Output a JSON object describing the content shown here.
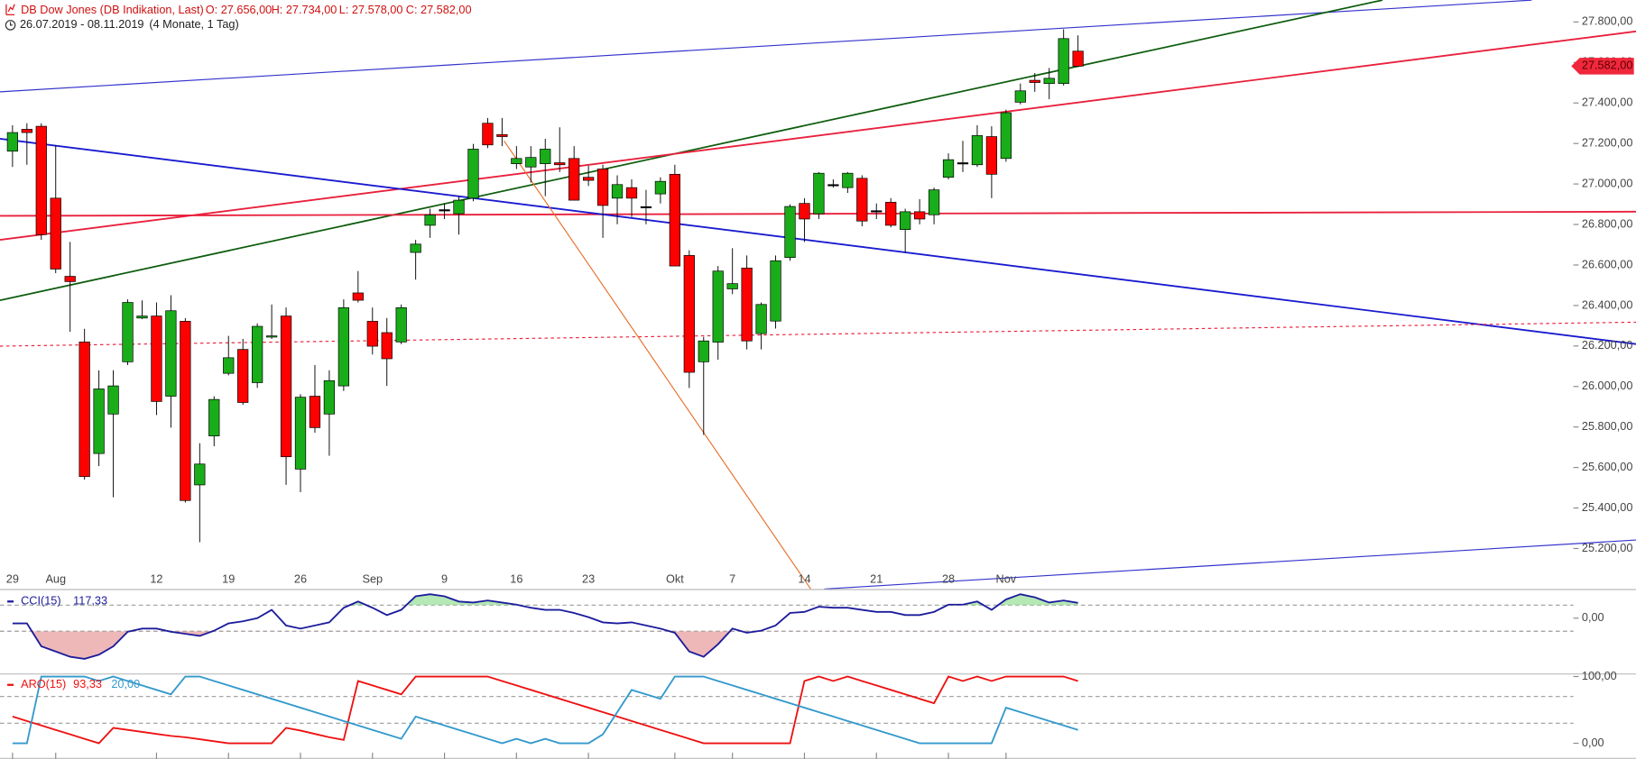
{
  "header": {
    "title": "DB Dow Jones (DB Indikation, Last)",
    "ohlc": [
      "O: 27.656,00",
      "H: 27.734,00",
      "L: 27.578,00",
      "C: 27.582,00"
    ],
    "range": "26.07.2019 - 08.11.2019",
    "period": "(4 Monate, 1 Tag)"
  },
  "chart_data": [
    {
      "type": "candlestick",
      "categories": [
        "29",
        null,
        null,
        "Aug",
        null,
        null,
        null,
        null,
        null,
        null,
        "12",
        null,
        null,
        null,
        null,
        "19",
        null,
        null,
        null,
        null,
        "26",
        null,
        null,
        null,
        null,
        "Sep",
        null,
        null,
        null,
        null,
        "9",
        null,
        null,
        null,
        null,
        "16",
        null,
        null,
        null,
        null,
        "23",
        null,
        null,
        null,
        null,
        null,
        "Okt",
        null,
        null,
        null,
        "7",
        null,
        null,
        null,
        null,
        "14",
        null,
        null,
        null,
        null,
        "21",
        null,
        null,
        null,
        null,
        "28",
        null,
        null,
        null,
        "Nov",
        null,
        null,
        null,
        null,
        null
      ],
      "open": [
        27162,
        27270,
        27285,
        26930,
        26544,
        26220,
        25669,
        25864,
        26122,
        26338,
        26348,
        25952,
        26322,
        25514,
        25756,
        26065,
        26183,
        26019,
        26245,
        26348,
        25592,
        25952,
        25864,
        26003,
        26462,
        26322,
        26266,
        26220,
        26662,
        26796,
        26873,
        26853,
        26930,
        27300,
        27244,
        27100,
        27084,
        27100,
        27105,
        27126,
        27033,
        27074,
        26930,
        26982,
        26888,
        26951,
        27048,
        26647,
        26122,
        26219,
        26482,
        26585,
        26261,
        26323,
        26637,
        26904,
        26853,
        26997,
        26982,
        27028,
        26868,
        26910,
        26775,
        26863,
        26848,
        27033,
        27105,
        27095,
        27234,
        27126,
        27404,
        27512,
        27496,
        27496,
        27656
      ],
      "high": [
        27290,
        27300,
        27300,
        27190,
        26714,
        26285,
        26080,
        26080,
        26430,
        26425,
        26415,
        26451,
        26338,
        25720,
        25952,
        26250,
        26235,
        26312,
        26405,
        26390,
        25962,
        26106,
        26080,
        26430,
        26570,
        26390,
        26338,
        26405,
        26724,
        26878,
        26904,
        26940,
        27198,
        27326,
        27326,
        27187,
        27187,
        27223,
        27280,
        27187,
        27090,
        27095,
        27043,
        27023,
        26971,
        27033,
        27095,
        26673,
        26245,
        26595,
        26683,
        26647,
        26415,
        26647,
        26899,
        26930,
        27059,
        27023,
        27059,
        27043,
        26904,
        26930,
        26878,
        26925,
        26982,
        27151,
        27213,
        27290,
        27285,
        27367,
        27496,
        27548,
        27573,
        27764,
        27734
      ],
      "low": [
        27084,
        27095,
        26724,
        26560,
        26270,
        25540,
        25607,
        25453,
        26106,
        26333,
        25859,
        25797,
        25427,
        25231,
        25705,
        26055,
        25910,
        25993,
        26235,
        25514,
        25478,
        25772,
        25658,
        25978,
        26415,
        26158,
        26003,
        26209,
        26528,
        26734,
        26827,
        26750,
        26915,
        27177,
        27187,
        27074,
        27007,
        26940,
        27059,
        26920,
        26990,
        26734,
        26801,
        26837,
        26801,
        26904,
        26595,
        25993,
        25761,
        26132,
        26456,
        26183,
        26183,
        26286,
        26621,
        26714,
        26827,
        26982,
        26956,
        26791,
        26827,
        26786,
        26662,
        26801,
        26801,
        27023,
        27059,
        27084,
        26930,
        27110,
        27393,
        27455,
        27419,
        27486,
        27578
      ],
      "close": [
        27254,
        27254,
        26750,
        26580,
        26518,
        25555,
        25988,
        26003,
        26415,
        26348,
        25926,
        26374,
        25437,
        25617,
        25936,
        26142,
        25921,
        26297,
        26250,
        25653,
        25947,
        25797,
        26029,
        26389,
        26426,
        26199,
        26137,
        26389,
        26703,
        26847,
        26873,
        26920,
        27172,
        27193,
        27234,
        27126,
        27131,
        27172,
        27095,
        26920,
        27018,
        26894,
        26997,
        26930,
        26888,
        27013,
        26595,
        26070,
        26225,
        26570,
        26508,
        26225,
        26405,
        26621,
        26889,
        26827,
        27053,
        26997,
        27053,
        26817,
        26868,
        26796,
        26863,
        26827,
        26971,
        27120,
        27105,
        27239,
        27048,
        27352,
        27460,
        27501,
        27522,
        27718,
        27582
      ],
      "up_color": "#1aad1a",
      "down_color": "#ff0000",
      "doji_color": "#000000",
      "last_label": "27.582,00",
      "last_color": "#f0283c",
      "ylim": [
        25000,
        27908
      ],
      "yticks": [
        {
          "value": 25200,
          "label": "25.200,00"
        },
        {
          "value": 25400,
          "label": "25.400,00"
        },
        {
          "value": 25600,
          "label": "25.600,00"
        },
        {
          "value": 25800,
          "label": "25.800,00"
        },
        {
          "value": 26000,
          "label": "26.000,00"
        },
        {
          "value": 26200,
          "label": "26.200,00"
        },
        {
          "value": 26400,
          "label": "26.400,00"
        },
        {
          "value": 26600,
          "label": "26.600,00"
        },
        {
          "value": 26800,
          "label": "26.800,00"
        },
        {
          "value": 27000,
          "label": "27.000,00"
        },
        {
          "value": 27200,
          "label": "27.200,00"
        },
        {
          "value": 27400,
          "label": "27.400,00"
        },
        {
          "value": 27600,
          "label": "27.600,00"
        },
        {
          "value": 27800,
          "label": "27.800,00"
        }
      ]
    },
    {
      "type": "line",
      "title": "CCI(15)",
      "series": [
        {
          "color": "#1c1c9c",
          "last_label": "117,33",
          "values": [
            -40,
            -40,
            -216,
            -256,
            -296,
            -312,
            -280,
            -216,
            -104,
            -80,
            -80,
            -104,
            -120,
            -136,
            -96,
            -40,
            -24,
            0,
            64,
            -56,
            -80,
            -56,
            -32,
            80,
            128,
            80,
            24,
            64,
            168,
            184,
            168,
            128,
            120,
            136,
            120,
            104,
            80,
            64,
            64,
            40,
            8,
            -32,
            -40,
            -32,
            -56,
            -80,
            -112,
            -256,
            -296,
            -200,
            -80,
            -112,
            -96,
            -56,
            40,
            48,
            88,
            80,
            80,
            64,
            48,
            48,
            24,
            24,
            48,
            104,
            104,
            128,
            64,
            144,
            184,
            160,
            120,
            136,
            117.33
          ]
        }
      ],
      "levels": [
        100,
        -100
      ],
      "level_fills": [
        "#9be09b",
        "#e8a0a0"
      ],
      "ylim": [
        -416,
        208
      ],
      "yticks": [
        {
          "value": 0,
          "label": "0,00"
        }
      ]
    },
    {
      "type": "line",
      "title": "ARO(15)",
      "series": [
        {
          "color": "#ee1111",
          "last_label": "93,33",
          "values": [
            40,
            33.33,
            26.67,
            20,
            13.33,
            6.67,
            0,
            23,
            20,
            17,
            14,
            11,
            9,
            6,
            3,
            0,
            0,
            0,
            0,
            23,
            19,
            14,
            9,
            5,
            93.33,
            86.67,
            80,
            73.33,
            100,
            100,
            100,
            100,
            100,
            100,
            93.33,
            86.67,
            80,
            73.33,
            66.67,
            60,
            53.33,
            46.67,
            40,
            33.33,
            26.67,
            20,
            13.33,
            6.67,
            0,
            0,
            0,
            0,
            0,
            0,
            0,
            93.33,
            100,
            93.33,
            100,
            93.33,
            86.67,
            80,
            73.33,
            66.67,
            60,
            100,
            93.33,
            100,
            93.33,
            100,
            100,
            100,
            100,
            100,
            93.33
          ]
        },
        {
          "color": "#3399cc",
          "last_label": "20,00",
          "values": [
            0,
            0,
            100,
            100,
            100,
            100,
            93.33,
            100,
            93.33,
            86.67,
            80,
            73.33,
            100,
            100,
            93.33,
            86.67,
            80,
            73.33,
            66.67,
            60,
            53.33,
            46.67,
            40,
            33.33,
            26.67,
            20,
            13.33,
            6.67,
            40,
            33.33,
            26.67,
            20,
            13.33,
            6.67,
            0,
            6.67,
            0,
            6.67,
            0,
            0,
            0,
            13.33,
            46.67,
            80,
            73.33,
            66.67,
            100,
            100,
            100,
            93.33,
            86.67,
            80,
            73.33,
            66.67,
            60,
            53.33,
            46.67,
            40,
            33.33,
            26.67,
            20,
            13.33,
            6.67,
            0,
            0,
            0,
            0,
            0,
            0,
            53.33,
            46.67,
            40,
            33.33,
            26.67,
            20
          ]
        }
      ],
      "levels": [
        70,
        30
      ],
      "ylim": [
        -18.75,
        103.1
      ],
      "yticks": [
        {
          "value": 100,
          "label": "100,00"
        },
        {
          "value": 0,
          "label": "0,00"
        }
      ]
    }
  ]
}
